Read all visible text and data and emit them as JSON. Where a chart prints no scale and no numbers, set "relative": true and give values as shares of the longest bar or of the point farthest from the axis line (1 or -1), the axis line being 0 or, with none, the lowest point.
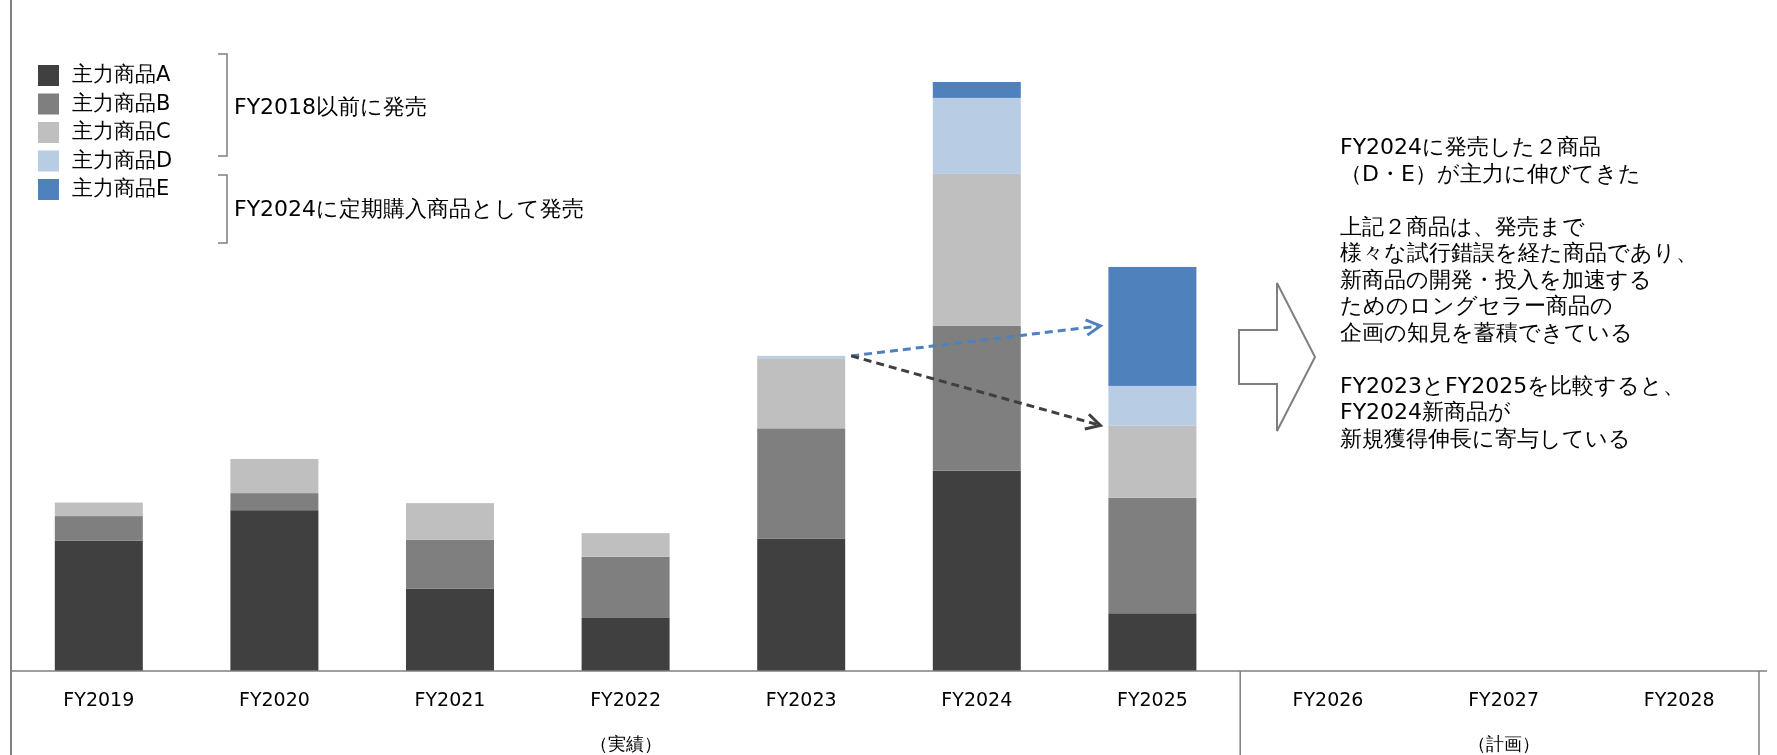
{
  "chart_data": {
    "type": "bar",
    "stacked": true,
    "relative": true,
    "legend": "top left",
    "categories": [
      "FY2019",
      "FY2020",
      "FY2021",
      "FY2022",
      "FY2023",
      "FY2024",
      "FY2025",
      "FY2026",
      "FY2027",
      "FY2028"
    ],
    "series": [
      {
        "name": "主力商品A",
        "color": "#404040",
        "values": [
          0.221,
          0.273,
          0.14,
          0.09,
          0.225,
          0.34,
          0.098,
          null,
          null,
          null
        ]
      },
      {
        "name": "主力商品B",
        "color": "#7f7f7f",
        "values": [
          0.042,
          0.029,
          0.083,
          0.104,
          0.187,
          0.246,
          0.196,
          null,
          null,
          null
        ]
      },
      {
        "name": "主力商品C",
        "color": "#bfbfbf",
        "values": [
          0.023,
          0.058,
          0.062,
          0.04,
          0.119,
          0.258,
          0.123,
          null,
          null,
          null
        ]
      },
      {
        "name": "主力商品D",
        "color": "#b8cce4",
        "values": [
          0,
          0,
          0,
          0,
          0.004,
          0.129,
          0.067,
          null,
          null,
          null
        ]
      },
      {
        "name": "主力商品E",
        "color": "#4f81bd",
        "values": [
          0,
          0,
          0,
          0,
          0,
          0.027,
          0.202,
          null,
          null,
          null
        ]
      }
    ],
    "annotations": [
      "FY2018以前に発売",
      "FY2024に定期購入商品として発売",
      "FY2024に発売した２商品",
      "（D・E）が主力に伸びてきた",
      "上記２商品は、発売まで",
      "様々な試行錯誤を経た商品であり、",
      "新商品の開発・投入を加速する",
      "ためのロングセラー商品の",
      "企画の知見を蓄積できている",
      "FY2023とFY2025を比較すると、",
      "FY2024新商品が",
      "新規獲得伸長に寄与している",
      "（実績）",
      "（計画）"
    ]
  }
}
